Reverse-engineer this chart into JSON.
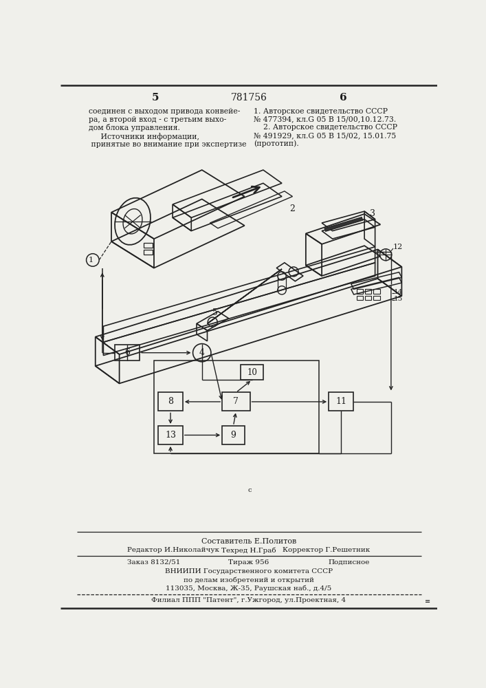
{
  "bg_color": "#f0f0eb",
  "page_number_left": "5",
  "page_number_center": "781756",
  "page_number_right": "6",
  "left_text": "соединен с выходом привода конвейе-\nра, а второй вход - с третьим выхо-\nдом блока управления.\n     Источники информации,\n принятые во внимание при экспертизе",
  "right_text": "1. Авторское свидетельство СССР\n№ 477394, кл.G 05 B 15/00,10.12.73.\n    2. Авторское свидетельство СССР\n№ 491929, кл.G 05 B 15/02, 15.01.75\n(прототип).",
  "footer_line1": "Составитель Е.Политов",
  "footer_line2_left": "Редактор И.Николайчук",
  "footer_line2_center": "Техред Н.Граб",
  "footer_line2_right": "Корректор Г.Решетник",
  "footer_line3_left": "Заказ 8132/51",
  "footer_line3_center": "Тираж 956",
  "footer_line3_right": "Подписное",
  "footer_line4": "ВНИИПИ Государственного комитета СССР",
  "footer_line5": "по делам изобретений и открытий",
  "footer_line6": "113035, Москва, Ж-35, Раушская наб., д.4/5",
  "footer_line7": "Филиал ППП \"Патент\", г.Ужгород, ул.Проектная, 4",
  "text_color": "#1a1a1a",
  "line_color": "#222222"
}
